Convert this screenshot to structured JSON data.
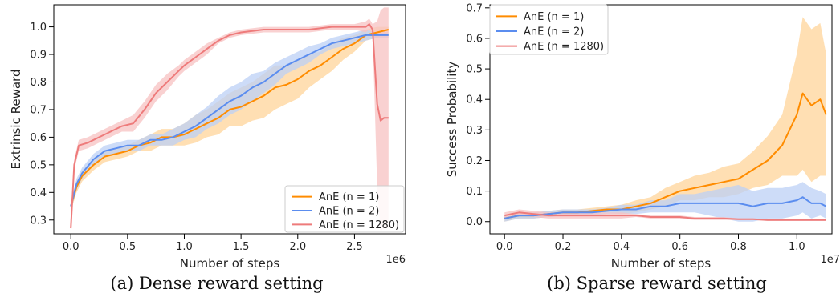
{
  "colors": {
    "orange": "#ff8c00",
    "blue": "#5b8def",
    "red": "#ee7b7b",
    "orange_band": "#ffd49a",
    "blue_band": "#bcd0f5",
    "red_band": "#f7c1c1"
  },
  "chart_data": [
    {
      "type": "line",
      "title": "",
      "caption": "(a) Dense reward setting",
      "xlabel": "Number of steps",
      "ylabel": "Extrinsic Reward",
      "x_offset_label": "1e6",
      "xlim": [
        -0.15,
        2.95
      ],
      "ylim": [
        0.25,
        1.08
      ],
      "xticks": [
        0.0,
        0.5,
        1.0,
        1.5,
        2.0,
        2.5
      ],
      "xtick_labels": [
        "0.0",
        "0.5",
        "1.0",
        "1.5",
        "2.0",
        "2.5"
      ],
      "yticks": [
        0.3,
        0.4,
        0.5,
        0.6,
        0.7,
        0.8,
        0.9,
        1.0
      ],
      "ytick_labels": [
        "0.3",
        "0.4",
        "0.5",
        "0.6",
        "0.7",
        "0.8",
        "0.9",
        "1.0"
      ],
      "legend_position": "bottom-right",
      "series": [
        {
          "name": "AnE (n = 1)",
          "color_key": "orange",
          "x": [
            0.0,
            0.05,
            0.1,
            0.2,
            0.3,
            0.4,
            0.5,
            0.6,
            0.7,
            0.8,
            0.9,
            1.0,
            1.1,
            1.2,
            1.3,
            1.4,
            1.5,
            1.6,
            1.7,
            1.8,
            1.9,
            2.0,
            2.1,
            2.2,
            2.3,
            2.4,
            2.5,
            2.6,
            2.7,
            2.8
          ],
          "y": [
            0.35,
            0.42,
            0.46,
            0.5,
            0.53,
            0.54,
            0.55,
            0.57,
            0.58,
            0.6,
            0.6,
            0.61,
            0.63,
            0.65,
            0.67,
            0.7,
            0.71,
            0.73,
            0.75,
            0.78,
            0.79,
            0.81,
            0.84,
            0.86,
            0.89,
            0.92,
            0.94,
            0.97,
            0.98,
            0.99
          ],
          "band": [
            0.02,
            0.02,
            0.02,
            0.02,
            0.02,
            0.02,
            0.02,
            0.02,
            0.03,
            0.03,
            0.03,
            0.04,
            0.05,
            0.05,
            0.06,
            0.06,
            0.07,
            0.07,
            0.08,
            0.08,
            0.07,
            0.07,
            0.06,
            0.05,
            0.05,
            0.04,
            0.03,
            0.02,
            0.02,
            0.01
          ]
        },
        {
          "name": "AnE (n = 2)",
          "color_key": "blue",
          "x": [
            0.0,
            0.05,
            0.1,
            0.2,
            0.3,
            0.4,
            0.5,
            0.6,
            0.7,
            0.8,
            0.9,
            1.0,
            1.1,
            1.2,
            1.3,
            1.4,
            1.5,
            1.6,
            1.7,
            1.8,
            1.9,
            2.0,
            2.1,
            2.2,
            2.3,
            2.4,
            2.5,
            2.6,
            2.7,
            2.8
          ],
          "y": [
            0.35,
            0.43,
            0.47,
            0.52,
            0.55,
            0.56,
            0.57,
            0.57,
            0.59,
            0.59,
            0.6,
            0.62,
            0.64,
            0.67,
            0.7,
            0.73,
            0.75,
            0.78,
            0.8,
            0.83,
            0.86,
            0.88,
            0.9,
            0.92,
            0.94,
            0.95,
            0.96,
            0.97,
            0.97,
            0.97
          ],
          "band": [
            0.02,
            0.02,
            0.02,
            0.02,
            0.02,
            0.02,
            0.02,
            0.02,
            0.02,
            0.02,
            0.03,
            0.03,
            0.04,
            0.04,
            0.05,
            0.05,
            0.05,
            0.05,
            0.04,
            0.04,
            0.03,
            0.03,
            0.03,
            0.02,
            0.02,
            0.02,
            0.02,
            0.02,
            0.01,
            0.01
          ]
        },
        {
          "name": "AnE (n = 1280)",
          "color_key": "red",
          "x": [
            0.0,
            0.03,
            0.07,
            0.15,
            0.25,
            0.35,
            0.45,
            0.55,
            0.65,
            0.75,
            0.85,
            0.95,
            1.0,
            1.1,
            1.2,
            1.3,
            1.4,
            1.5,
            1.7,
            1.9,
            2.1,
            2.3,
            2.5,
            2.6,
            2.63,
            2.66,
            2.7,
            2.73,
            2.76,
            2.8
          ],
          "y": [
            0.27,
            0.5,
            0.57,
            0.58,
            0.6,
            0.62,
            0.64,
            0.65,
            0.7,
            0.76,
            0.8,
            0.84,
            0.86,
            0.89,
            0.92,
            0.95,
            0.97,
            0.98,
            0.99,
            0.99,
            0.99,
            1.0,
            1.0,
            1.0,
            1.01,
            0.99,
            0.72,
            0.66,
            0.67,
            0.67
          ],
          "band": [
            0.01,
            0.02,
            0.02,
            0.02,
            0.02,
            0.02,
            0.02,
            0.03,
            0.03,
            0.03,
            0.03,
            0.02,
            0.02,
            0.02,
            0.02,
            0.01,
            0.01,
            0.01,
            0.01,
            0.01,
            0.01,
            0.01,
            0.01,
            0.02,
            0.02,
            0.02,
            0.3,
            0.4,
            0.4,
            0.4
          ]
        }
      ]
    },
    {
      "type": "line",
      "title": "",
      "caption": "(b) Sparse reward setting",
      "xlabel": "Number of steps",
      "ylabel": "Success Probability",
      "x_offset_label": "1e7",
      "xlim": [
        -0.05,
        1.12
      ],
      "ylim": [
        -0.04,
        0.71
      ],
      "xticks": [
        0.0,
        0.2,
        0.4,
        0.6,
        0.8,
        1.0
      ],
      "xtick_labels": [
        "0.0",
        "0.2",
        "0.4",
        "0.6",
        "0.8",
        "1.0"
      ],
      "yticks": [
        0.0,
        0.1,
        0.2,
        0.3,
        0.4,
        0.5,
        0.6,
        0.7
      ],
      "ytick_labels": [
        "0.0",
        "0.1",
        "0.2",
        "0.3",
        "0.4",
        "0.5",
        "0.6",
        "0.7"
      ],
      "legend_position": "top-left",
      "series": [
        {
          "name": "AnE (n = 1)",
          "color_key": "orange",
          "x": [
            0.0,
            0.05,
            0.1,
            0.15,
            0.2,
            0.25,
            0.3,
            0.35,
            0.4,
            0.45,
            0.5,
            0.55,
            0.6,
            0.65,
            0.7,
            0.75,
            0.8,
            0.85,
            0.9,
            0.95,
            1.0,
            1.02,
            1.05,
            1.08,
            1.1
          ],
          "y": [
            0.01,
            0.02,
            0.02,
            0.025,
            0.03,
            0.03,
            0.035,
            0.04,
            0.04,
            0.05,
            0.06,
            0.08,
            0.1,
            0.11,
            0.12,
            0.13,
            0.14,
            0.17,
            0.2,
            0.25,
            0.35,
            0.42,
            0.38,
            0.4,
            0.35
          ],
          "band": [
            0.01,
            0.01,
            0.01,
            0.01,
            0.01,
            0.01,
            0.01,
            0.01,
            0.015,
            0.02,
            0.02,
            0.03,
            0.03,
            0.04,
            0.04,
            0.05,
            0.05,
            0.06,
            0.08,
            0.1,
            0.2,
            0.25,
            0.25,
            0.25,
            0.2
          ]
        },
        {
          "name": "AnE (n = 2)",
          "color_key": "blue",
          "x": [
            0.0,
            0.05,
            0.1,
            0.15,
            0.2,
            0.25,
            0.3,
            0.35,
            0.4,
            0.45,
            0.5,
            0.55,
            0.6,
            0.65,
            0.7,
            0.75,
            0.8,
            0.85,
            0.9,
            0.95,
            1.0,
            1.02,
            1.05,
            1.08,
            1.1
          ],
          "y": [
            0.01,
            0.02,
            0.02,
            0.025,
            0.03,
            0.03,
            0.03,
            0.035,
            0.04,
            0.04,
            0.05,
            0.05,
            0.06,
            0.06,
            0.06,
            0.06,
            0.06,
            0.05,
            0.06,
            0.06,
            0.07,
            0.08,
            0.06,
            0.06,
            0.05
          ],
          "band": [
            0.01,
            0.01,
            0.01,
            0.01,
            0.01,
            0.01,
            0.01,
            0.01,
            0.015,
            0.015,
            0.02,
            0.02,
            0.03,
            0.03,
            0.04,
            0.05,
            0.06,
            0.05,
            0.05,
            0.05,
            0.05,
            0.05,
            0.05,
            0.04,
            0.04
          ]
        },
        {
          "name": "AnE (n = 1280)",
          "color_key": "red",
          "x": [
            0.0,
            0.05,
            0.1,
            0.15,
            0.2,
            0.25,
            0.3,
            0.35,
            0.4,
            0.45,
            0.5,
            0.55,
            0.6,
            0.65,
            0.7,
            0.75,
            0.8,
            0.85,
            0.9,
            0.95,
            1.0,
            1.05,
            1.1
          ],
          "y": [
            0.02,
            0.03,
            0.025,
            0.02,
            0.02,
            0.02,
            0.02,
            0.02,
            0.02,
            0.02,
            0.015,
            0.015,
            0.015,
            0.01,
            0.01,
            0.01,
            0.008,
            0.008,
            0.005,
            0.005,
            0.005,
            0.005,
            0.005
          ],
          "band": [
            0.01,
            0.01,
            0.01,
            0.01,
            0.01,
            0.01,
            0.01,
            0.01,
            0.01,
            0.005,
            0.005,
            0.005,
            0.005,
            0.005,
            0.005,
            0.005,
            0.003,
            0.003,
            0.003,
            0.003,
            0.003,
            0.003,
            0.003
          ]
        }
      ]
    }
  ]
}
